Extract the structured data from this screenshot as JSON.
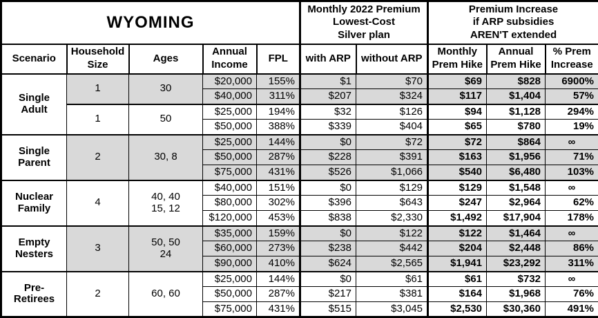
{
  "colors": {
    "shaded_row": "#d9d9d9",
    "border": "#000000",
    "background": "#ffffff"
  },
  "table": {
    "title": "WYOMING",
    "section_headers": {
      "premium": "Monthly 2022 Premium\nLowest-Cost\nSilver plan",
      "increase": "Premium Increase\nif ARP subsidies\nAREN'T extended"
    },
    "columns": {
      "scenario": "Scenario",
      "household": "Household\nSize",
      "ages": "Ages",
      "income": "Annual\nIncome",
      "fpl": "FPL",
      "with_arp": "with ARP",
      "without_arp": "without ARP",
      "monthly_hike": "Monthly\nPrem Hike",
      "annual_hike": "Annual\nPrem Hike",
      "pct_increase": "% Prem\nIncrease"
    }
  },
  "groups": [
    {
      "scenario": "Single\nAdult",
      "subgroups": [
        {
          "household": "1",
          "ages": "30",
          "shaded": true,
          "rows": [
            [
              "$20,000",
              "155%",
              "$1",
              "$70",
              "$69",
              "$828",
              "6900%"
            ],
            [
              "$40,000",
              "311%",
              "$207",
              "$324",
              "$117",
              "$1,404",
              "57%"
            ]
          ]
        },
        {
          "household": "1",
          "ages": "50",
          "shaded": false,
          "rows": [
            [
              "$25,000",
              "194%",
              "$32",
              "$126",
              "$94",
              "$1,128",
              "294%"
            ],
            [
              "$50,000",
              "388%",
              "$339",
              "$404",
              "$65",
              "$780",
              "19%"
            ]
          ]
        }
      ]
    },
    {
      "scenario": "Single\nParent",
      "subgroups": [
        {
          "household": "2",
          "ages": "30, 8",
          "shaded": true,
          "rows": [
            [
              "$25,000",
              "144%",
              "$0",
              "$72",
              "$72",
              "$864",
              "∞"
            ],
            [
              "$50,000",
              "287%",
              "$228",
              "$391",
              "$163",
              "$1,956",
              "71%"
            ],
            [
              "$75,000",
              "431%",
              "$526",
              "$1,066",
              "$540",
              "$6,480",
              "103%"
            ]
          ]
        }
      ]
    },
    {
      "scenario": "Nuclear\nFamily",
      "subgroups": [
        {
          "household": "4",
          "ages": "40, 40\n15, 12",
          "shaded": false,
          "rows": [
            [
              "$40,000",
              "151%",
              "$0",
              "$129",
              "$129",
              "$1,548",
              "∞"
            ],
            [
              "$80,000",
              "302%",
              "$396",
              "$643",
              "$247",
              "$2,964",
              "62%"
            ],
            [
              "$120,000",
              "453%",
              "$838",
              "$2,330",
              "$1,492",
              "$17,904",
              "178%"
            ]
          ]
        }
      ]
    },
    {
      "scenario": "Empty\nNesters",
      "subgroups": [
        {
          "household": "3",
          "ages": "50, 50\n24",
          "shaded": true,
          "rows": [
            [
              "$35,000",
              "159%",
              "$0",
              "$122",
              "$122",
              "$1,464",
              "∞"
            ],
            [
              "$60,000",
              "273%",
              "$238",
              "$442",
              "$204",
              "$2,448",
              "86%"
            ],
            [
              "$90,000",
              "410%",
              "$624",
              "$2,565",
              "$1,941",
              "$23,292",
              "311%"
            ]
          ]
        }
      ]
    },
    {
      "scenario": "Pre-\nRetirees",
      "subgroups": [
        {
          "household": "2",
          "ages": "60, 60",
          "shaded": false,
          "rows": [
            [
              "$25,000",
              "144%",
              "$0",
              "$61",
              "$61",
              "$732",
              "∞"
            ],
            [
              "$50,000",
              "287%",
              "$217",
              "$381",
              "$164",
              "$1,968",
              "76%"
            ],
            [
              "$75,000",
              "431%",
              "$515",
              "$3,045",
              "$2,530",
              "$30,360",
              "491%"
            ]
          ]
        }
      ]
    }
  ]
}
